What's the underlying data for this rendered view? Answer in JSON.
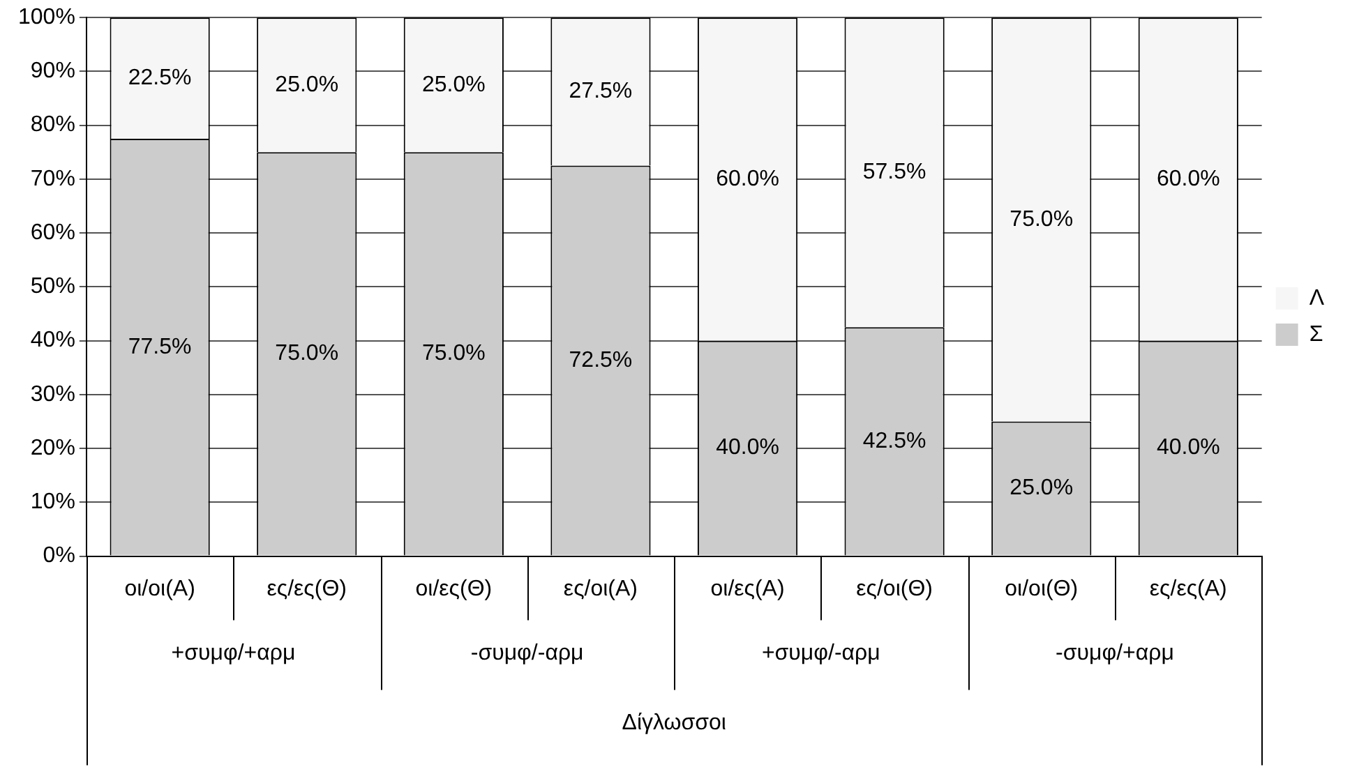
{
  "chart_data": {
    "type": "bar",
    "stacked": true,
    "categories": [
      "οι/οι(Α)",
      "ες/ες(Θ)",
      "οι/ες(Θ)",
      "ες/οι(Α)",
      "οι/ες(Α)",
      "ες/οι(Θ)",
      "οι/οι(Θ)",
      "ες/ες(Α)"
    ],
    "series": [
      {
        "name": "Σ",
        "color": "#cccccc",
        "values": [
          77.5,
          75,
          75,
          72.5,
          40,
          42.5,
          25,
          40
        ],
        "value_labels": [
          "77.5%",
          "75.0%",
          "75.0%",
          "72.5%",
          "40.0%",
          "42.5%",
          "25.0%",
          "40.0%"
        ]
      },
      {
        "name": "Λ",
        "color": "#f6f6f6",
        "values": [
          22.5,
          25,
          25,
          27.5,
          60,
          57.5,
          75,
          60
        ],
        "value_labels": [
          "22.5%",
          "25.0%",
          "25.0%",
          "27.5%",
          "60.0%",
          "57.5%",
          "75.0%",
          "60.0%"
        ]
      }
    ],
    "ylim": [
      0,
      100
    ],
    "yticks": [
      {
        "value": 0,
        "label": "0%"
      },
      {
        "value": 10,
        "label": "10%"
      },
      {
        "value": 20,
        "label": "20%"
      },
      {
        "value": 30,
        "label": "30%"
      },
      {
        "value": 40,
        "label": "40%"
      },
      {
        "value": 50,
        "label": "50%"
      },
      {
        "value": 60,
        "label": "60%"
      },
      {
        "value": 70,
        "label": "70%"
      },
      {
        "value": 80,
        "label": "80%"
      },
      {
        "value": 90,
        "label": "90%"
      },
      {
        "value": 100,
        "label": "100%"
      }
    ],
    "annotations": [
      "+συμφ/+αρμ",
      "-συμφ/-αρμ",
      "+συμφ/-αρμ",
      "-συμφ/+αρμ",
      "Δίγλωσσοι"
    ],
    "grid": "y",
    "legend": "right"
  }
}
